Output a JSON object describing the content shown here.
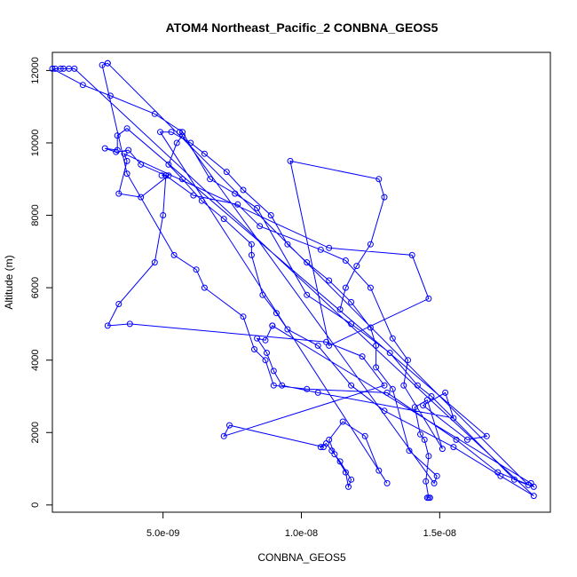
{
  "chart_data": {
    "type": "line",
    "title": "ATOM4 Northeast_Pacific_2 CONBNA_GEOS5",
    "xlabel": "CONBNA_GEOS5",
    "ylabel": "Altitude (m)",
    "xlim": [
      1e-09,
      1.9e-08
    ],
    "ylim": [
      -200,
      12500
    ],
    "x_ticks": [
      5e-09,
      1e-08,
      1.5e-08
    ],
    "x_tick_labels": [
      "5.0e-09",
      "1.0e-08",
      "1.5e-08"
    ],
    "y_ticks": [
      0,
      2000,
      4000,
      6000,
      8000,
      10000,
      12000
    ],
    "y_tick_labels": [
      "0",
      "2000",
      "4000",
      "6000",
      "8000",
      "10000",
      "12000"
    ],
    "grid": false,
    "series": [
      {
        "color": "#0000ff",
        "marker": "open-circle",
        "points": [
          [
            1.465e-08,
            200
          ],
          [
            1.455e-08,
            200
          ],
          [
            1.46e-08,
            200
          ],
          [
            1.45e-08,
            650
          ],
          [
            1.46e-08,
            1350
          ],
          [
            1.445e-08,
            1800
          ],
          [
            1.43e-08,
            1950
          ],
          [
            1.41e-08,
            2700
          ],
          [
            1.455e-08,
            2900
          ],
          [
            1.51e-08,
            1550
          ],
          [
            1.37e-08,
            3300
          ],
          [
            1.385e-08,
            4000
          ],
          [
            1.33e-08,
            4600
          ],
          [
            1.25e-08,
            6000
          ],
          [
            1.16e-08,
            6750
          ],
          [
            1.07e-08,
            7050
          ],
          [
            8.5e-09,
            7700
          ],
          [
            7.7e-09,
            8300
          ],
          [
            6.1e-09,
            8550
          ],
          [
            5.1e-09,
            9100
          ],
          [
            4.2e-09,
            9400
          ],
          [
            3.75e-09,
            9800
          ],
          [
            3.3e-09,
            9750
          ],
          [
            2.9e-09,
            9850
          ],
          [
            3.35e-09,
            9800
          ],
          [
            3.35e-09,
            10200
          ],
          [
            3.7e-09,
            10400
          ],
          [
            1.67e-08,
            1900
          ],
          [
            1.6e-08,
            1800
          ],
          [
            1.44e-08,
            2750
          ],
          [
            1.52e-08,
            3100
          ],
          [
            1.55e-08,
            2400
          ],
          [
            1.06e-08,
            3100
          ],
          [
            9.3e-09,
            3300
          ],
          [
            9e-09,
            3700
          ],
          [
            8.75e-09,
            4200
          ],
          [
            8.4e-09,
            4600
          ],
          [
            8.7e-09,
            4550
          ],
          [
            8.95e-09,
            4950
          ],
          [
            8.95e-09,
            4950
          ],
          [
            1.83e-08,
            600
          ],
          [
            1.84e-08,
            500
          ],
          [
            1.71e-08,
            900
          ],
          [
            1.56e-08,
            1800
          ],
          [
            1.31e-08,
            3100
          ],
          [
            1.02e-08,
            3200
          ],
          [
            9e-09,
            3300
          ],
          [
            8.7e-09,
            4000
          ],
          [
            8.3e-09,
            4300
          ],
          [
            7.9e-09,
            5200
          ],
          [
            6.5e-09,
            6000
          ],
          [
            6.2e-09,
            6500
          ],
          [
            5.4e-09,
            6900
          ],
          [
            3.7e-09,
            9150
          ],
          [
            2.8e-09,
            12150
          ],
          [
            3e-09,
            12200
          ],
          [
            3e-09,
            12200
          ],
          [
            1.82e-08,
            550
          ],
          [
            1.77e-08,
            700
          ],
          [
            1.47e-08,
            3000
          ],
          [
            1.42e-08,
            3300
          ],
          [
            1.32e-08,
            4200
          ],
          [
            1.18e-08,
            5000
          ],
          [
            1.02e-08,
            5800
          ],
          [
            8.4e-09,
            8200
          ],
          [
            7.6e-09,
            8600
          ],
          [
            6.7e-09,
            9000
          ],
          [
            5.7e-09,
            10300
          ],
          [
            4.7e-09,
            10800
          ],
          [
            3.1e-09,
            11300
          ],
          [
            2.1e-09,
            11600
          ],
          [
            1e-09,
            12050
          ],
          [
            1.1e-09,
            12050
          ],
          [
            1.3e-09,
            12050
          ],
          [
            1.4e-09,
            12050
          ],
          [
            1.6e-09,
            12050
          ],
          [
            1.8e-09,
            12050
          ],
          [
            1.84e-08,
            250
          ],
          [
            1.72e-08,
            800
          ],
          [
            1.55e-08,
            1600
          ],
          [
            1.3e-08,
            2600
          ],
          [
            1.18e-08,
            3300
          ],
          [
            1.06e-08,
            4400
          ],
          [
            9.5e-09,
            4850
          ],
          [
            9.1e-09,
            5300
          ],
          [
            8.6e-09,
            5800
          ],
          [
            8.2e-09,
            6900
          ],
          [
            8.2e-09,
            7200
          ],
          [
            7.2e-09,
            7900
          ],
          [
            6.4e-09,
            8400
          ],
          [
            5.7e-09,
            9000
          ],
          [
            5.2e-09,
            9400
          ],
          [
            5.5e-09,
            10000
          ],
          [
            5.7e-09,
            10200
          ],
          [
            5.6e-09,
            10300
          ],
          [
            1.48e-08,
            600
          ],
          [
            1.49e-08,
            800
          ],
          [
            1.39e-08,
            1500
          ],
          [
            1.33e-08,
            3200
          ],
          [
            1.27e-08,
            3800
          ],
          [
            1.27e-08,
            4400
          ],
          [
            1.25e-08,
            4900
          ],
          [
            1.18e-08,
            5600
          ],
          [
            1.1e-08,
            6200
          ],
          [
            1.02e-08,
            6700
          ],
          [
            9.5e-09,
            7200
          ],
          [
            8.9e-09,
            8000
          ],
          [
            7.9e-09,
            8700
          ],
          [
            7.3e-09,
            9200
          ],
          [
            6.5e-09,
            9700
          ],
          [
            6e-09,
            10000
          ],
          [
            5.3e-09,
            10300
          ],
          [
            4.9e-09,
            10300
          ],
          [
            1.31e-08,
            600
          ],
          [
            1.28e-08,
            950
          ],
          [
            1.23e-08,
            1900
          ],
          [
            1.15e-08,
            2300
          ],
          [
            1.1e-08,
            1800
          ],
          [
            1.12e-08,
            1400
          ],
          [
            1.16e-08,
            900
          ],
          [
            1.17e-08,
            500
          ],
          [
            1.18e-08,
            700
          ],
          [
            1.14e-08,
            1200
          ],
          [
            1.11e-08,
            1500
          ],
          [
            1.09e-08,
            1700
          ],
          [
            1.07e-08,
            1600
          ],
          [
            1.08e-08,
            1600
          ],
          [
            7.4e-09,
            2200
          ],
          [
            7.2e-09,
            1900
          ],
          [
            1.3e-08,
            3300
          ],
          [
            1.22e-08,
            4100
          ],
          [
            1.09e-08,
            4500
          ],
          [
            3.8e-09,
            5000
          ],
          [
            3e-09,
            4950
          ],
          [
            3.4e-09,
            5550
          ],
          [
            4.7e-09,
            6700
          ],
          [
            5e-09,
            8000
          ],
          [
            5.1e-09,
            9100
          ],
          [
            4.95e-09,
            9100
          ],
          [
            5.2e-09,
            9100
          ],
          [
            4.2e-09,
            8500
          ],
          [
            3.4e-09,
            8600
          ],
          [
            3.7e-09,
            9500
          ],
          [
            3.6e-09,
            9700
          ],
          [
            1.1e-08,
            7100
          ],
          [
            1.4e-08,
            6900
          ],
          [
            1.46e-08,
            5700
          ],
          [
            1.1e-08,
            4400
          ],
          [
            9.6e-09,
            9500
          ],
          [
            1.28e-08,
            9000
          ],
          [
            1.3e-08,
            8500
          ],
          [
            1.25e-08,
            7200
          ],
          [
            1.2e-08,
            6600
          ],
          [
            1.16e-08,
            6000
          ],
          [
            1.14e-08,
            5400
          ]
        ]
      }
    ]
  }
}
